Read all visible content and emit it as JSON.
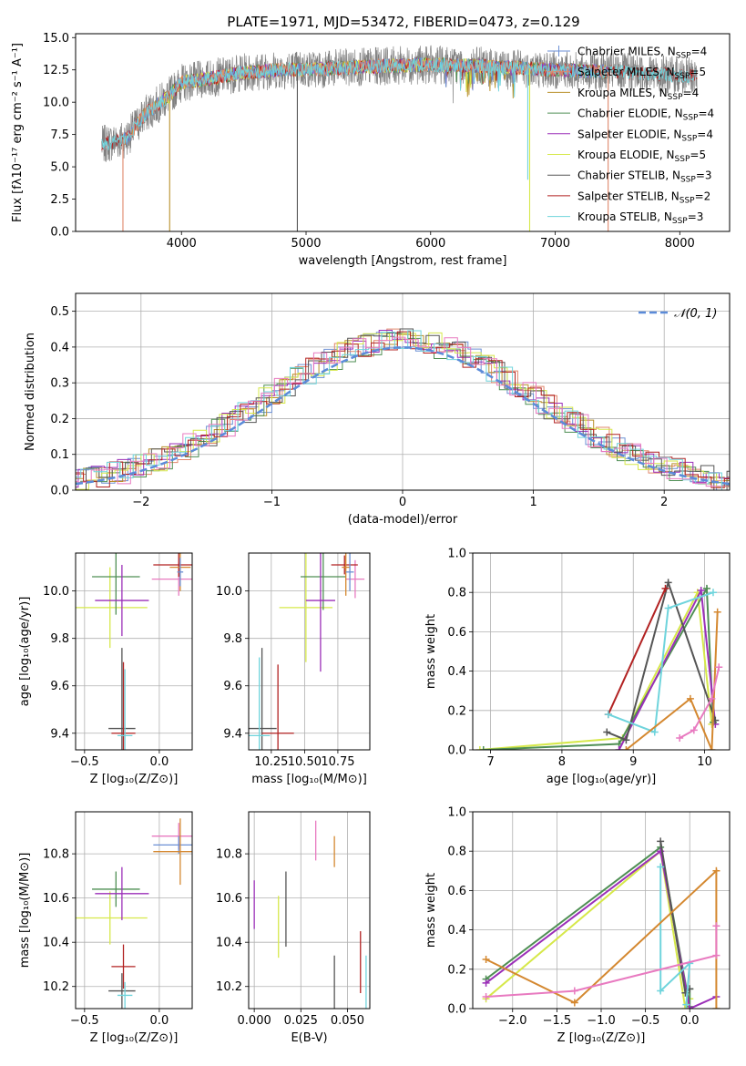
{
  "colors": {
    "chabrier_miles": "#6b8fd4",
    "salpeter_miles": "#e0876b",
    "kroupa_miles": "#b8902a",
    "chabrier_elodie": "#4f8f54",
    "salpeter_elodie": "#9b2fb8",
    "kroupa_elodie": "#d6e84a",
    "chabrier_stelib": "#555555",
    "salpeter_stelib": "#b22222",
    "kroupa_stelib": "#6fd4dc",
    "pink": "#e87ac0",
    "orange": "#d48830",
    "gaussian": "#5b8bd9",
    "grid": "#b0b0b0"
  },
  "chart_data": [
    {
      "id": "spectrum",
      "type": "line",
      "title": "PLATE=1971, MJD=53472, FIBERID=0473, z=0.129",
      "xlabel": "wavelength [Angstrom, rest frame]",
      "ylabel": "Flux [fλ10⁻¹⁷ erg cm⁻² s⁻¹ A⁻¹]",
      "xlim": [
        3150,
        8400
      ],
      "ylim": [
        0,
        15.3
      ],
      "xticks": [
        4000,
        5000,
        6000,
        7000,
        8000
      ],
      "yticks": [
        0.0,
        2.5,
        5.0,
        7.5,
        10.0,
        12.5,
        15.0
      ],
      "legend_position": "right",
      "legend": [
        {
          "label": "Chabrier MILES, N",
          "sub": "SSP",
          "suffix": "=4",
          "color_key": "chabrier_miles"
        },
        {
          "label": "Salpeter MILES, N",
          "sub": "SSP",
          "suffix": "=5",
          "color_key": "salpeter_miles"
        },
        {
          "label": "Kroupa MILES, N",
          "sub": "SSP",
          "suffix": "=4",
          "color_key": "kroupa_miles"
        },
        {
          "label": "Chabrier ELODIE, N",
          "sub": "SSP",
          "suffix": "=4",
          "color_key": "chabrier_elodie"
        },
        {
          "label": "Salpeter ELODIE, N",
          "sub": "SSP",
          "suffix": "=4",
          "color_key": "salpeter_elodie"
        },
        {
          "label": "Kroupa ELODIE, N",
          "sub": "SSP",
          "suffix": "=5",
          "color_key": "kroupa_elodie"
        },
        {
          "label": "Chabrier STELIB, N",
          "sub": "SSP",
          "suffix": "=3",
          "color_key": "chabrier_stelib"
        },
        {
          "label": "Salpeter STELIB, N",
          "sub": "SSP",
          "suffix": "=2",
          "color_key": "salpeter_stelib"
        },
        {
          "label": "Kroupa STELIB, N",
          "sub": "SSP",
          "suffix": "=3",
          "color_key": "kroupa_stelib"
        }
      ],
      "continuum": [
        [
          3360,
          6.7
        ],
        [
          3560,
          7.2
        ],
        [
          3700,
          9.0
        ],
        [
          3900,
          10.5
        ],
        [
          4000,
          11.5
        ],
        [
          4200,
          11.8
        ],
        [
          4500,
          12.3
        ],
        [
          4800,
          12.5
        ],
        [
          5200,
          12.6
        ],
        [
          5600,
          12.8
        ],
        [
          6000,
          12.9
        ],
        [
          6400,
          12.8
        ],
        [
          6800,
          12.6
        ],
        [
          7200,
          12.4
        ],
        [
          7600,
          12.3
        ],
        [
          7900,
          12.1
        ],
        [
          8140,
          12.0
        ]
      ],
      "dips": [
        {
          "x": 3530,
          "to": 0,
          "color_key": "salpeter_miles"
        },
        {
          "x": 3905,
          "to": 0,
          "color_key": "kroupa_miles"
        },
        {
          "x": 4930,
          "to": 0,
          "color_key": "chabrier_stelib"
        },
        {
          "x": 6795,
          "to": 0,
          "color_key": "kroupa_elodie"
        },
        {
          "x": 7425,
          "to": 0,
          "color_key": "salpeter_miles"
        },
        {
          "x": 6780,
          "to": 4,
          "color_key": "kroupa_stelib"
        }
      ]
    },
    {
      "id": "residuals",
      "type": "histogram",
      "xlabel": "(data-model)/error",
      "ylabel": "Normed distribution",
      "xlim": [
        -2.5,
        2.5
      ],
      "ylim": [
        0,
        0.55
      ],
      "xticks": [
        -2,
        -1,
        0,
        1,
        2
      ],
      "yticks": [
        0.0,
        0.1,
        0.2,
        0.3,
        0.4,
        0.5
      ],
      "grid": true,
      "legend_position": "top-right",
      "gaussian_label": "𝒩(0, 1)"
    },
    {
      "id": "z-age",
      "type": "errorbar",
      "xlabel": "Z [log₁₀(Z/Z⊙)]",
      "ylabel": "age  [log₁₀(age/yr)]",
      "xlim": [
        -0.56,
        0.22
      ],
      "ylim": [
        9.33,
        10.16
      ],
      "xticks": [
        -0.5,
        0.0
      ],
      "yticks": [
        9.4,
        9.6,
        9.8,
        10.0
      ],
      "grid": true,
      "points": [
        {
          "x": -0.33,
          "y": 9.93,
          "xe": 0.25,
          "ye": 0.17,
          "c": "kroupa_elodie"
        },
        {
          "x": -0.29,
          "y": 10.06,
          "xe": 0.16,
          "ye": 0.16,
          "c": "chabrier_elodie"
        },
        {
          "x": -0.25,
          "y": 9.96,
          "xe": 0.18,
          "ye": 0.15,
          "c": "salpeter_elodie"
        },
        {
          "x": 0.13,
          "y": 10.05,
          "xe": 0.18,
          "ye": 0.07,
          "c": "pink"
        },
        {
          "x": 0.13,
          "y": 10.11,
          "xe": 0.17,
          "ye": 0.05,
          "c": "salpeter_stelib"
        },
        {
          "x": 0.14,
          "y": 10.1,
          "xe": 0.07,
          "ye": 0.1,
          "c": "orange"
        },
        {
          "x": -0.25,
          "y": 9.42,
          "xe": 0.09,
          "ye": 0.34,
          "c": "chabrier_stelib"
        },
        {
          "x": -0.24,
          "y": 9.4,
          "xe": 0.08,
          "ye": 0.3,
          "c": "salpeter_stelib"
        },
        {
          "x": -0.23,
          "y": 9.39,
          "xe": 0.05,
          "ye": 0.28,
          "c": "kroupa_stelib"
        },
        {
          "x": 0.14,
          "y": 10.08,
          "xe": 0.02,
          "ye": 0.06,
          "c": "chabrier_miles"
        }
      ]
    },
    {
      "id": "mass-age",
      "type": "errorbar",
      "xlabel": "mass [log₁₀(M/M⊙)]",
      "ylabel": "",
      "xlim": [
        10.08,
        10.99
      ],
      "ylim": [
        9.33,
        10.16
      ],
      "xticks": [
        10.25,
        10.5,
        10.75
      ],
      "yticks": [
        9.4,
        9.6,
        9.8,
        10.0
      ],
      "grid": true,
      "points": [
        {
          "x": 10.51,
          "y": 9.93,
          "xe": 0.2,
          "ye": 0.23,
          "c": "kroupa_elodie"
        },
        {
          "x": 10.64,
          "y": 10.06,
          "xe": 0.17,
          "ye": 0.14,
          "c": "chabrier_elodie"
        },
        {
          "x": 10.62,
          "y": 9.96,
          "xe": 0.11,
          "ye": 0.3,
          "c": "salpeter_elodie"
        },
        {
          "x": 10.88,
          "y": 10.05,
          "xe": 0.07,
          "ye": 0.08,
          "c": "pink"
        },
        {
          "x": 10.8,
          "y": 10.11,
          "xe": 0.1,
          "ye": 0.04,
          "c": "salpeter_stelib"
        },
        {
          "x": 10.81,
          "y": 10.1,
          "xe": 0.03,
          "ye": 0.12,
          "c": "orange"
        },
        {
          "x": 10.84,
          "y": 10.08,
          "xe": 0.03,
          "ye": 0.08,
          "c": "chabrier_miles"
        },
        {
          "x": 10.18,
          "y": 9.42,
          "xe": 0.11,
          "ye": 0.34,
          "c": "chabrier_stelib"
        },
        {
          "x": 10.3,
          "y": 9.4,
          "xe": 0.12,
          "ye": 0.29,
          "c": "salpeter_stelib"
        },
        {
          "x": 10.16,
          "y": 9.39,
          "xe": 0.08,
          "ye": 0.33,
          "c": "kroupa_stelib"
        }
      ]
    },
    {
      "id": "age-weight",
      "type": "line",
      "xlabel": "age  [log₁₀(age/yr)]",
      "ylabel": "mass weight",
      "xlim": [
        6.75,
        10.35
      ],
      "ylim": [
        0,
        1.0
      ],
      "xticks": [
        7,
        8,
        9,
        10
      ],
      "yticks": [
        0.0,
        0.2,
        0.4,
        0.6,
        0.8,
        1.0
      ],
      "grid": true,
      "series": [
        {
          "c": "kroupa_elodie",
          "pts": [
            [
              6.85,
              0.0
            ],
            [
              8.85,
              0.06
            ],
            [
              9.9,
              0.8
            ],
            [
              10.1,
              0.13
            ]
          ]
        },
        {
          "c": "chabrier_elodie",
          "pts": [
            [
              6.9,
              0.0
            ],
            [
              8.8,
              0.03
            ],
            [
              10.03,
              0.82
            ],
            [
              10.12,
              0.14
            ]
          ]
        },
        {
          "c": "salpeter_elodie",
          "pts": [
            [
              8.8,
              0.0
            ],
            [
              9.95,
              0.81
            ],
            [
              10.15,
              0.13
            ]
          ]
        },
        {
          "c": "chabrier_stelib",
          "pts": [
            [
              8.63,
              0.09
            ],
            [
              8.9,
              0.05
            ],
            [
              9.49,
              0.85
            ],
            [
              10.15,
              0.15
            ]
          ]
        },
        {
          "c": "salpeter_stelib",
          "pts": [
            [
              8.65,
              0.18
            ],
            [
              9.45,
              0.82
            ]
          ]
        },
        {
          "c": "kroupa_stelib",
          "pts": [
            [
              8.65,
              0.18
            ],
            [
              9.3,
              0.09
            ],
            [
              9.49,
              0.72
            ],
            [
              10.12,
              0.8
            ]
          ]
        },
        {
          "c": "orange",
          "pts": [
            [
              8.9,
              0.0
            ],
            [
              9.8,
              0.26
            ],
            [
              10.1,
              0.0
            ],
            [
              10.18,
              0.7
            ]
          ]
        },
        {
          "c": "pink",
          "pts": [
            [
              9.65,
              0.06
            ],
            [
              9.85,
              0.1
            ],
            [
              10.1,
              0.26
            ],
            [
              10.2,
              0.42
            ]
          ]
        }
      ]
    },
    {
      "id": "z-mass",
      "type": "errorbar",
      "xlabel": "Z [log₁₀(Z/Z⊙)]",
      "ylabel": "mass [log₁₀(M/M⊙)]",
      "xlim": [
        -0.56,
        0.22
      ],
      "ylim": [
        10.1,
        10.99
      ],
      "xticks": [
        -0.5,
        0.0
      ],
      "yticks": [
        10.2,
        10.4,
        10.6,
        10.8
      ],
      "grid": true,
      "points": [
        {
          "x": -0.33,
          "y": 10.51,
          "xe": 0.25,
          "ye": 0.12,
          "c": "kroupa_elodie"
        },
        {
          "x": -0.29,
          "y": 10.64,
          "xe": 0.16,
          "ye": 0.08,
          "c": "chabrier_elodie"
        },
        {
          "x": -0.25,
          "y": 10.62,
          "xe": 0.18,
          "ye": 0.12,
          "c": "salpeter_elodie"
        },
        {
          "x": 0.13,
          "y": 10.88,
          "xe": 0.18,
          "ye": 0.06,
          "c": "pink"
        },
        {
          "x": 0.13,
          "y": 10.84,
          "xe": 0.17,
          "ye": 0.04,
          "c": "chabrier_miles"
        },
        {
          "x": 0.14,
          "y": 10.81,
          "xe": 0.18,
          "ye": 0.15,
          "c": "orange"
        },
        {
          "x": -0.25,
          "y": 10.18,
          "xe": 0.09,
          "ye": 0.08,
          "c": "chabrier_stelib"
        },
        {
          "x": -0.24,
          "y": 10.29,
          "xe": 0.08,
          "ye": 0.1,
          "c": "salpeter_stelib"
        },
        {
          "x": -0.23,
          "y": 10.16,
          "xe": 0.05,
          "ye": 0.06,
          "c": "kroupa_stelib"
        }
      ]
    },
    {
      "id": "ebv-mass",
      "type": "errorbar",
      "xlabel": "E(B-V)",
      "ylabel": "",
      "xlim": [
        -0.003,
        0.062
      ],
      "ylim": [
        10.1,
        10.99
      ],
      "xticks": [
        0.0,
        0.025,
        0.05
      ],
      "yticks": [
        10.2,
        10.4,
        10.6,
        10.8
      ],
      "grid": true,
      "points": [
        {
          "x": 0.0,
          "y": 10.57,
          "xe": 0,
          "ye": 0.11,
          "c": "salpeter_elodie"
        },
        {
          "x": 0.013,
          "y": 10.47,
          "xe": 0,
          "ye": 0.14,
          "c": "kroupa_elodie"
        },
        {
          "x": 0.017,
          "y": 10.55,
          "xe": 0,
          "ye": 0.17,
          "c": "chabrier_stelib"
        },
        {
          "x": 0.033,
          "y": 10.86,
          "xe": 0,
          "ye": 0.09,
          "c": "pink"
        },
        {
          "x": 0.043,
          "y": 10.81,
          "xe": 0,
          "ye": 0.07,
          "c": "orange"
        },
        {
          "x": 0.043,
          "y": 10.22,
          "xe": 0,
          "ye": 0.12,
          "c": "chabrier_stelib"
        },
        {
          "x": 0.057,
          "y": 10.31,
          "xe": 0,
          "ye": 0.14,
          "c": "salpeter_stelib"
        },
        {
          "x": 0.06,
          "y": 10.22,
          "xe": 0,
          "ye": 0.12,
          "c": "kroupa_stelib"
        }
      ]
    },
    {
      "id": "z-weight",
      "type": "line",
      "xlabel": "Z [log₁₀(Z/Z⊙)]",
      "ylabel": "mass weight",
      "xlim": [
        -2.45,
        0.45
      ],
      "ylim": [
        0,
        1.0
      ],
      "xticks": [
        -2.0,
        -1.5,
        -1.0,
        -0.5,
        0.0
      ],
      "yticks": [
        0.0,
        0.2,
        0.4,
        0.6,
        0.8,
        1.0
      ],
      "grid": true,
      "series": [
        {
          "c": "kroupa_elodie",
          "pts": [
            [
              -2.3,
              0.05
            ],
            [
              -0.33,
              0.8
            ],
            [
              -0.05,
              0.0
            ],
            [
              0.0,
              0.05
            ]
          ]
        },
        {
          "c": "chabrier_elodie",
          "pts": [
            [
              -2.3,
              0.15
            ],
            [
              -0.33,
              0.82
            ],
            [
              0.0,
              0.01
            ],
            [
              0.0,
              0.1
            ]
          ]
        },
        {
          "c": "salpeter_elodie",
          "pts": [
            [
              -2.3,
              0.13
            ],
            [
              -0.33,
              0.8
            ],
            [
              0.0,
              0.0
            ],
            [
              0.3,
              0.06
            ]
          ]
        },
        {
          "c": "chabrier_stelib",
          "pts": [
            [
              -0.33,
              0.85
            ],
            [
              -0.05,
              0.08
            ],
            [
              0.0,
              0.1
            ]
          ]
        },
        {
          "c": "kroupa_stelib",
          "pts": [
            [
              -0.33,
              0.72
            ],
            [
              -0.33,
              0.09
            ],
            [
              0.0,
              0.23
            ],
            [
              -0.04,
              0.02
            ]
          ]
        },
        {
          "c": "orange",
          "pts": [
            [
              -2.3,
              0.25
            ],
            [
              -1.3,
              0.03
            ],
            [
              0.3,
              0.7
            ],
            [
              0.3,
              0.0
            ]
          ]
        },
        {
          "c": "pink",
          "pts": [
            [
              -2.3,
              0.06
            ],
            [
              -1.3,
              0.09
            ],
            [
              0.3,
              0.27
            ],
            [
              0.3,
              0.42
            ]
          ]
        }
      ]
    }
  ]
}
